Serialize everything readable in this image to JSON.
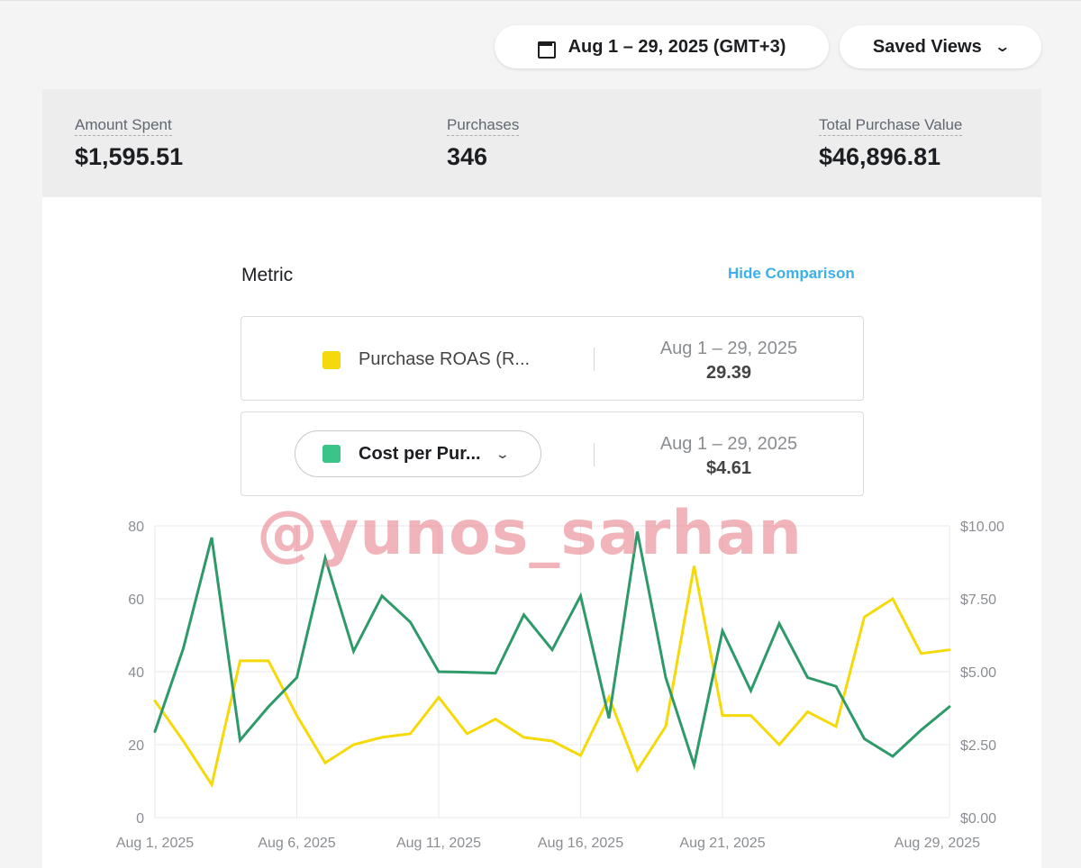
{
  "header": {
    "date_range": "Aug 1 – 29, 2025 (GMT+3)",
    "saved_views": "Saved Views"
  },
  "summary": [
    {
      "label": "Amount Spent",
      "value": "$1,595.51"
    },
    {
      "label": "Purchases",
      "value": "346"
    },
    {
      "label": "Total Purchase Value",
      "value": "$46,896.81"
    }
  ],
  "metric_panel": {
    "title": "Metric",
    "hide_comparison": "Hide Comparison",
    "metrics": [
      {
        "name": "Purchase ROAS (R...",
        "color": "#f5d90a",
        "period": "Aug 1 – 29, 2025",
        "value": "29.39"
      },
      {
        "name": "Cost per Pur...",
        "color": "#3bc48a",
        "period": "Aug 1 – 29, 2025",
        "value": "$4.61"
      }
    ]
  },
  "watermark": "@yunos_sarhan",
  "chart_data": {
    "type": "line",
    "x": [
      "Aug 1, 2025",
      "Aug 2, 2025",
      "Aug 3, 2025",
      "Aug 4, 2025",
      "Aug 5, 2025",
      "Aug 6, 2025",
      "Aug 7, 2025",
      "Aug 8, 2025",
      "Aug 9, 2025",
      "Aug 10, 2025",
      "Aug 11, 2025",
      "Aug 12, 2025",
      "Aug 13, 2025",
      "Aug 14, 2025",
      "Aug 15, 2025",
      "Aug 16, 2025",
      "Aug 17, 2025",
      "Aug 18, 2025",
      "Aug 19, 2025",
      "Aug 20, 2025",
      "Aug 21, 2025",
      "Aug 22, 2025",
      "Aug 23, 2025",
      "Aug 24, 2025",
      "Aug 25, 2025",
      "Aug 26, 2025",
      "Aug 27, 2025",
      "Aug 28, 2025",
      "Aug 29, 2025"
    ],
    "x_tick_labels": [
      "Aug 1, 2025",
      "Aug 6, 2025",
      "Aug 11, 2025",
      "Aug 16, 2025",
      "Aug 21, 2025",
      "Aug 29, 2025"
    ],
    "series": [
      {
        "color": "#f5d90a",
        "axis": "left",
        "values": [
          32,
          21,
          9,
          43,
          43,
          28,
          15,
          20,
          22,
          23,
          33,
          23,
          27,
          22,
          21,
          17,
          33,
          13,
          25,
          69,
          28,
          28,
          20,
          29,
          25,
          55,
          60,
          45,
          46
        ]
      },
      {
        "color": "#2e9a6a",
        "axis": "right",
        "values": [
          2.95,
          5.8,
          9.6,
          2.65,
          3.8,
          4.8,
          8.9,
          5.7,
          7.6,
          6.7,
          5.0,
          4.98,
          4.95,
          6.95,
          5.75,
          7.6,
          3.4,
          9.8,
          4.8,
          1.8,
          6.4,
          4.35,
          6.65,
          4.8,
          4.5,
          2.7,
          2.1,
          3.0,
          3.8
        ]
      }
    ],
    "y_left": {
      "ylim": [
        0,
        80
      ],
      "ticks": [
        "0",
        "20",
        "40",
        "60",
        "80"
      ]
    },
    "y_right": {
      "ylim": [
        0,
        10
      ],
      "ticks": [
        "$0.00",
        "$2.50",
        "$5.00",
        "$7.50",
        "$10.00"
      ]
    },
    "grid": true
  }
}
